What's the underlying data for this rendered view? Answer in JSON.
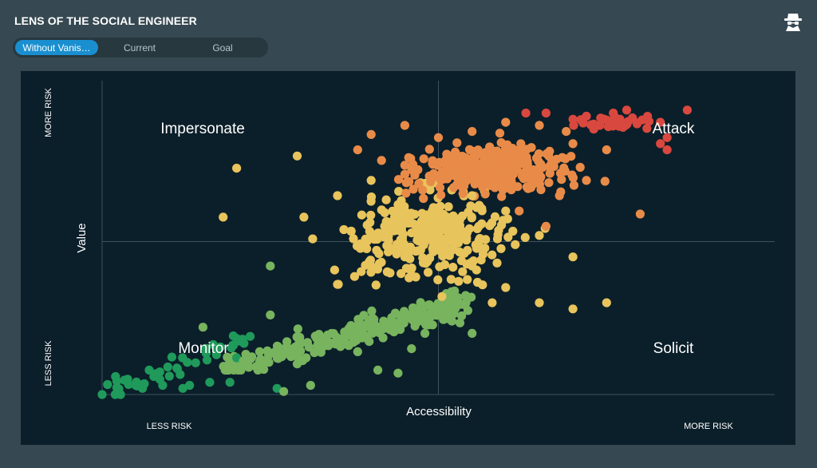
{
  "header": {
    "title": "LENS OF THE SOCIAL ENGINEER",
    "icon": "spy-icon"
  },
  "tabs": [
    {
      "label": "Without Vanis…",
      "active": true
    },
    {
      "label": "Current",
      "active": false
    },
    {
      "label": "Goal",
      "active": false
    }
  ],
  "chart_data": {
    "type": "scatter",
    "xlabel": "Accessibility",
    "ylabel": "Value",
    "x_low_label": "LESS RISK",
    "x_high_label": "MORE RISK",
    "y_low_label": "LESS RISK",
    "y_high_label": "MORE RISK",
    "xlim": [
      0,
      100
    ],
    "ylim": [
      0,
      100
    ],
    "quadrant_lines": {
      "x": 50,
      "y": 50
    },
    "quadrants": {
      "top_left": "Impersonate",
      "top_right": "Attack",
      "bottom_left": "Monitor",
      "bottom_right": "Solicit"
    },
    "colors": {
      "dark_green": "#1f9a5b",
      "green": "#78b35e",
      "yellow": "#e8c45c",
      "orange": "#e98b48",
      "red": "#d9483f"
    },
    "clusters": [
      {
        "name": "dark_green",
        "color": "#1f9a5b",
        "count": 40,
        "x_range": [
          0,
          22
        ],
        "y_range": [
          0,
          22
        ]
      },
      {
        "name": "green",
        "color": "#78b35e",
        "count": 260,
        "x_range": [
          18,
          55
        ],
        "y_range": [
          8,
          35
        ]
      },
      {
        "name": "yellow",
        "color": "#e8c45c",
        "count": 300,
        "x_range": [
          27,
          70
        ],
        "y_range": [
          25,
          78
        ]
      },
      {
        "name": "orange",
        "color": "#e98b48",
        "count": 320,
        "x_range": [
          36,
          80
        ],
        "y_range": [
          58,
          90
        ]
      },
      {
        "name": "red",
        "color": "#d9483f",
        "count": 30,
        "x_range": [
          64,
          87
        ],
        "y_range": [
          84,
          93
        ]
      }
    ],
    "points": [
      [
        0,
        0,
        "dark_green"
      ],
      [
        13,
        3,
        "dark_green"
      ],
      [
        16,
        4,
        "dark_green"
      ],
      [
        19,
        4,
        "dark_green"
      ],
      [
        7,
        8,
        "dark_green"
      ],
      [
        10,
        6,
        "dark_green"
      ],
      [
        20,
        12,
        "dark_green"
      ],
      [
        22,
        19,
        "dark_green"
      ],
      [
        17,
        13,
        "dark_green"
      ],
      [
        26,
        2,
        "dark_green"
      ],
      [
        6,
        2,
        "dark_green"
      ],
      [
        9,
        3,
        "dark_green"
      ],
      [
        12,
        2,
        "dark_green"
      ],
      [
        5,
        3,
        "dark_green"
      ],
      [
        15,
        22,
        "green"
      ],
      [
        21,
        11,
        "green"
      ],
      [
        25,
        26,
        "green"
      ],
      [
        29,
        10,
        "green"
      ],
      [
        31,
        3,
        "green"
      ],
      [
        27,
        1,
        "green"
      ],
      [
        32,
        16,
        "green"
      ],
      [
        38,
        14,
        "green"
      ],
      [
        41,
        8,
        "green"
      ],
      [
        44,
        7,
        "green"
      ],
      [
        46,
        15,
        "green"
      ],
      [
        48,
        20,
        "green"
      ],
      [
        52,
        24,
        "green"
      ],
      [
        55,
        20,
        "green"
      ],
      [
        25,
        42,
        "green"
      ],
      [
        35,
        36,
        "yellow"
      ],
      [
        40,
        42,
        "yellow"
      ],
      [
        45,
        45,
        "yellow"
      ],
      [
        50,
        48,
        "yellow"
      ],
      [
        55,
        42,
        "yellow"
      ],
      [
        60,
        35,
        "yellow"
      ],
      [
        65,
        30,
        "yellow"
      ],
      [
        70,
        28,
        "yellow"
      ],
      [
        75,
        30,
        "yellow"
      ],
      [
        70,
        45,
        "yellow"
      ],
      [
        65,
        52,
        "yellow"
      ],
      [
        30,
        58,
        "yellow"
      ],
      [
        35,
        65,
        "yellow"
      ],
      [
        40,
        70,
        "yellow"
      ],
      [
        29,
        78,
        "yellow"
      ],
      [
        20,
        74,
        "yellow"
      ],
      [
        18,
        58,
        "yellow"
      ],
      [
        45,
        60,
        "yellow"
      ],
      [
        55,
        65,
        "yellow"
      ],
      [
        60,
        60,
        "yellow"
      ],
      [
        53,
        37,
        "yellow"
      ],
      [
        58,
        30,
        "yellow"
      ],
      [
        50,
        55,
        "yellow"
      ],
      [
        48,
        50,
        "yellow"
      ],
      [
        42,
        55,
        "yellow"
      ],
      [
        40,
        85,
        "orange"
      ],
      [
        45,
        88,
        "orange"
      ],
      [
        50,
        84,
        "orange"
      ],
      [
        55,
        86,
        "orange"
      ],
      [
        60,
        89,
        "orange"
      ],
      [
        65,
        88,
        "orange"
      ],
      [
        70,
        82,
        "orange"
      ],
      [
        75,
        80,
        "orange"
      ],
      [
        72,
        70,
        "orange"
      ],
      [
        68,
        65,
        "orange"
      ],
      [
        62,
        60,
        "orange"
      ],
      [
        66,
        55,
        "orange"
      ],
      [
        80,
        59,
        "orange"
      ],
      [
        60,
        75,
        "orange"
      ],
      [
        52,
        78,
        "orange"
      ],
      [
        45,
        72,
        "orange"
      ],
      [
        38,
        80,
        "orange"
      ],
      [
        57,
        70,
        "orange"
      ],
      [
        63,
        80,
        "orange"
      ],
      [
        69,
        86,
        "orange"
      ],
      [
        66,
        92,
        "red"
      ],
      [
        70,
        90,
        "red"
      ],
      [
        72,
        91,
        "red"
      ],
      [
        74,
        88,
        "red"
      ],
      [
        77,
        90,
        "red"
      ],
      [
        76,
        92,
        "red"
      ],
      [
        78,
        93,
        "red"
      ],
      [
        81,
        87,
        "red"
      ],
      [
        83,
        89,
        "red"
      ],
      [
        84,
        84,
        "red"
      ],
      [
        87,
        93,
        "red"
      ],
      [
        84,
        80,
        "red"
      ],
      [
        83,
        82,
        "red"
      ],
      [
        63,
        92,
        "red"
      ]
    ]
  }
}
